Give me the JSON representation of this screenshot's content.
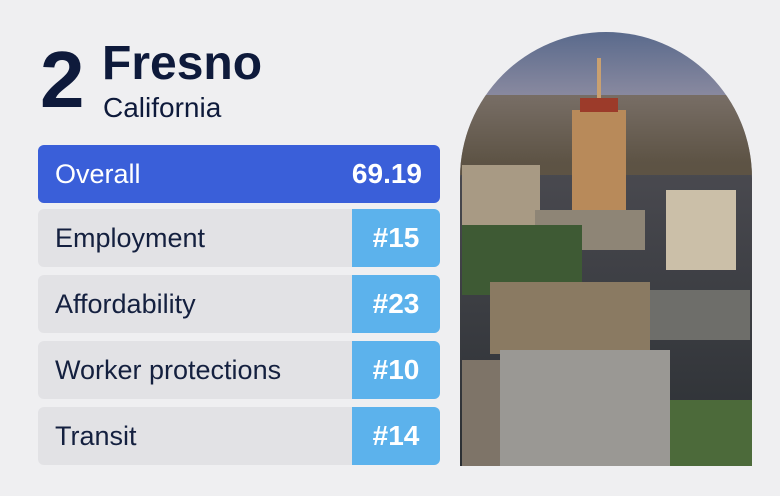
{
  "header": {
    "rank": "2",
    "city": "Fresno",
    "state": "California"
  },
  "rows": [
    {
      "label": "Overall",
      "value": "69.19"
    },
    {
      "label": "Employment",
      "value": "#15"
    },
    {
      "label": "Affordability",
      "value": "#23"
    },
    {
      "label": "Worker protections",
      "value": "#10"
    },
    {
      "label": "Transit",
      "value": "#14"
    }
  ]
}
